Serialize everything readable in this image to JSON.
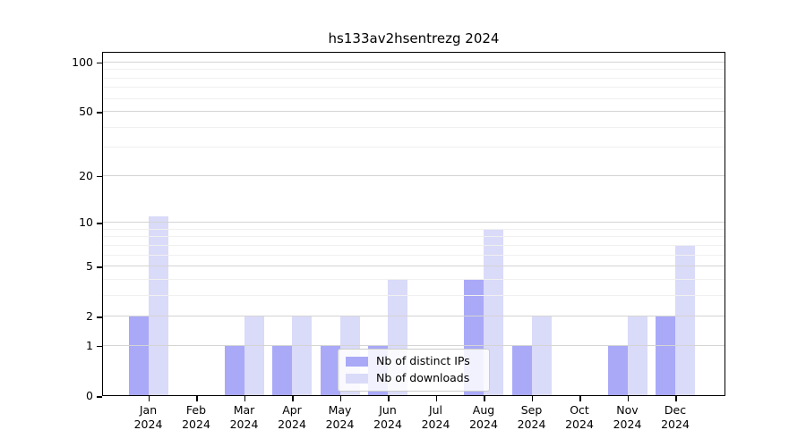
{
  "chart_data": {
    "type": "bar",
    "title": "hs133av2hsentrezg 2024",
    "categories": [
      "Jan",
      "Feb",
      "Mar",
      "Apr",
      "May",
      "Jun",
      "Jul",
      "Aug",
      "Sep",
      "Oct",
      "Nov",
      "Dec"
    ],
    "category_year": "2024",
    "series": [
      {
        "name": "Nb of distinct IPs",
        "color": "#a9a9f8",
        "values": [
          2,
          0,
          1,
          1,
          1,
          1,
          0,
          4,
          1,
          0,
          1,
          2
        ]
      },
      {
        "name": "Nb of downloads",
        "color": "#dadaf9",
        "values": [
          11,
          0,
          2,
          2,
          2,
          4,
          0,
          9,
          2,
          0,
          2,
          7
        ]
      }
    ],
    "xlabel": "",
    "ylabel": "",
    "yscale": "log1p",
    "ylim": [
      0,
      116
    ],
    "y_major_ticks": [
      0,
      1,
      2,
      5,
      10,
      20,
      50,
      100
    ],
    "y_minor_ticks": [
      3,
      4,
      6,
      7,
      8,
      9,
      30,
      40,
      60,
      70,
      80,
      90
    ],
    "grid": true,
    "legend_position": "lower-center"
  },
  "style": {
    "background": "#ffffff",
    "spine_color": "#000000",
    "grid_major_color": "#d4d4d4",
    "grid_minor_color": "#f0f0f0",
    "text_color": "#000000",
    "legend_border_color": "#cccccc"
  }
}
